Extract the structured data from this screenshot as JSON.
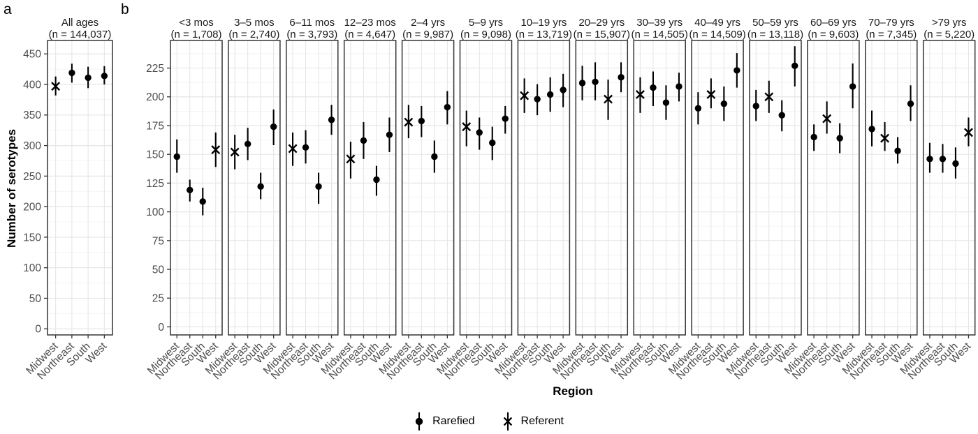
{
  "chart_data": {
    "type": "scatter",
    "panel_a_label": "a",
    "panel_b_label": "b",
    "ylabel": "Number of serotypes",
    "xlabel": "Region",
    "regions": [
      "Midwest",
      "Northeast",
      "South",
      "West"
    ],
    "legend": [
      {
        "label": "Rarefied",
        "marker": "circle"
      },
      {
        "label": "Referent",
        "marker": "x"
      }
    ],
    "colors": {
      "point": "#000000",
      "axis_text": "#4d4d4d",
      "title_text": "#1a1a1a",
      "grid_major": "#e6e6e6",
      "grid_minor": "#f2f2f2",
      "panel_border": "#333333"
    },
    "panel_a": {
      "facet_title": "All ages",
      "facet_subtitle": "(n = 144,037)",
      "y_ticks": [
        0,
        50,
        100,
        150,
        200,
        250,
        300,
        350,
        400,
        450
      ],
      "ylim": [
        -10,
        472
      ],
      "points": [
        {
          "region": "Midwest",
          "marker": "x",
          "value": 397,
          "lo": 382,
          "hi": 413
        },
        {
          "region": "Northeast",
          "marker": "circle",
          "value": 419,
          "lo": 403,
          "hi": 434
        },
        {
          "region": "South",
          "marker": "circle",
          "value": 411,
          "lo": 394,
          "hi": 429
        },
        {
          "region": "West",
          "marker": "circle",
          "value": 414,
          "lo": 400,
          "hi": 430
        }
      ]
    },
    "panel_b": {
      "y_ticks": [
        0,
        25,
        50,
        75,
        100,
        125,
        150,
        175,
        200,
        225
      ],
      "ylim": [
        -7,
        249
      ],
      "facets": [
        {
          "title": "<3 mos",
          "subtitle": "(n = 1,708)",
          "points": [
            {
              "region": "Midwest",
              "marker": "circle",
              "value": 148,
              "lo": 134,
              "hi": 163
            },
            {
              "region": "Northeast",
              "marker": "circle",
              "value": 119,
              "lo": 109,
              "hi": 128
            },
            {
              "region": "South",
              "marker": "circle",
              "value": 109,
              "lo": 97,
              "hi": 121
            },
            {
              "region": "West",
              "marker": "x",
              "value": 154,
              "lo": 139,
              "hi": 169
            }
          ]
        },
        {
          "title": "3–5 mos",
          "subtitle": "(n = 2,740)",
          "points": [
            {
              "region": "Midwest",
              "marker": "x",
              "value": 152,
              "lo": 137,
              "hi": 167
            },
            {
              "region": "Northeast",
              "marker": "circle",
              "value": 159,
              "lo": 145,
              "hi": 173
            },
            {
              "region": "South",
              "marker": "circle",
              "value": 122,
              "lo": 111,
              "hi": 134
            },
            {
              "region": "West",
              "marker": "circle",
              "value": 174,
              "lo": 158,
              "hi": 189
            }
          ]
        },
        {
          "title": "6–11 mos",
          "subtitle": "(n = 3,793)",
          "points": [
            {
              "region": "Midwest",
              "marker": "x",
              "value": 155,
              "lo": 140,
              "hi": 169
            },
            {
              "region": "Northeast",
              "marker": "circle",
              "value": 156,
              "lo": 142,
              "hi": 171
            },
            {
              "region": "South",
              "marker": "circle",
              "value": 122,
              "lo": 107,
              "hi": 134
            },
            {
              "region": "West",
              "marker": "circle",
              "value": 180,
              "lo": 167,
              "hi": 193
            }
          ]
        },
        {
          "title": "12–23 mos",
          "subtitle": "(n = 4,647)",
          "points": [
            {
              "region": "Midwest",
              "marker": "x",
              "value": 146,
              "lo": 129,
              "hi": 161
            },
            {
              "region": "Northeast",
              "marker": "circle",
              "value": 162,
              "lo": 146,
              "hi": 178
            },
            {
              "region": "South",
              "marker": "circle",
              "value": 128,
              "lo": 114,
              "hi": 140
            },
            {
              "region": "West",
              "marker": "circle",
              "value": 167,
              "lo": 152,
              "hi": 182
            }
          ]
        },
        {
          "title": "2–4 yrs",
          "subtitle": "(n = 9,987)",
          "points": [
            {
              "region": "Midwest",
              "marker": "x",
              "value": 178,
              "lo": 164,
              "hi": 193
            },
            {
              "region": "Northeast",
              "marker": "circle",
              "value": 179,
              "lo": 165,
              "hi": 192
            },
            {
              "region": "South",
              "marker": "circle",
              "value": 148,
              "lo": 134,
              "hi": 162
            },
            {
              "region": "West",
              "marker": "circle",
              "value": 191,
              "lo": 176,
              "hi": 205
            }
          ]
        },
        {
          "title": "5–9 yrs",
          "subtitle": "(n = 9,098)",
          "points": [
            {
              "region": "Midwest",
              "marker": "x",
              "value": 174,
              "lo": 157,
              "hi": 188
            },
            {
              "region": "Northeast",
              "marker": "circle",
              "value": 169,
              "lo": 154,
              "hi": 182
            },
            {
              "region": "South",
              "marker": "circle",
              "value": 160,
              "lo": 145,
              "hi": 174
            },
            {
              "region": "West",
              "marker": "circle",
              "value": 181,
              "lo": 168,
              "hi": 192
            }
          ]
        },
        {
          "title": "10–19 yrs",
          "subtitle": "(n = 13,719)",
          "points": [
            {
              "region": "Midwest",
              "marker": "x",
              "value": 201,
              "lo": 186,
              "hi": 216
            },
            {
              "region": "Northeast",
              "marker": "circle",
              "value": 198,
              "lo": 184,
              "hi": 211
            },
            {
              "region": "South",
              "marker": "circle",
              "value": 202,
              "lo": 187,
              "hi": 217
            },
            {
              "region": "West",
              "marker": "circle",
              "value": 206,
              "lo": 191,
              "hi": 220
            }
          ]
        },
        {
          "title": "20–29 yrs",
          "subtitle": "(n = 15,907)",
          "points": [
            {
              "region": "Midwest",
              "marker": "circle",
              "value": 212,
              "lo": 197,
              "hi": 227
            },
            {
              "region": "Northeast",
              "marker": "circle",
              "value": 213,
              "lo": 197,
              "hi": 230
            },
            {
              "region": "South",
              "marker": "x",
              "value": 198,
              "lo": 180,
              "hi": 215
            },
            {
              "region": "West",
              "marker": "circle",
              "value": 217,
              "lo": 204,
              "hi": 230
            }
          ]
        },
        {
          "title": "30–39 yrs",
          "subtitle": "(n = 14,505)",
          "points": [
            {
              "region": "Midwest",
              "marker": "x",
              "value": 202,
              "lo": 186,
              "hi": 217
            },
            {
              "region": "Northeast",
              "marker": "circle",
              "value": 208,
              "lo": 192,
              "hi": 222
            },
            {
              "region": "South",
              "marker": "circle",
              "value": 195,
              "lo": 180,
              "hi": 210
            },
            {
              "region": "West",
              "marker": "circle",
              "value": 209,
              "lo": 196,
              "hi": 221
            }
          ]
        },
        {
          "title": "40–49 yrs",
          "subtitle": "(n = 14,509)",
          "points": [
            {
              "region": "Midwest",
              "marker": "circle",
              "value": 190,
              "lo": 176,
              "hi": 204
            },
            {
              "region": "Northeast",
              "marker": "x",
              "value": 202,
              "lo": 190,
              "hi": 216
            },
            {
              "region": "South",
              "marker": "circle",
              "value": 194,
              "lo": 179,
              "hi": 209
            },
            {
              "region": "West",
              "marker": "circle",
              "value": 223,
              "lo": 208,
              "hi": 238
            }
          ]
        },
        {
          "title": "50–59 yrs",
          "subtitle": "(n = 13,118)",
          "points": [
            {
              "region": "Midwest",
              "marker": "circle",
              "value": 192,
              "lo": 179,
              "hi": 206
            },
            {
              "region": "Northeast",
              "marker": "x",
              "value": 200,
              "lo": 186,
              "hi": 214
            },
            {
              "region": "South",
              "marker": "circle",
              "value": 184,
              "lo": 170,
              "hi": 197
            },
            {
              "region": "West",
              "marker": "circle",
              "value": 227,
              "lo": 209,
              "hi": 244
            }
          ]
        },
        {
          "title": "60–69 yrs",
          "subtitle": "(n = 9,603)",
          "points": [
            {
              "region": "Midwest",
              "marker": "circle",
              "value": 165,
              "lo": 153,
              "hi": 176
            },
            {
              "region": "Northeast",
              "marker": "x",
              "value": 181,
              "lo": 168,
              "hi": 196
            },
            {
              "region": "South",
              "marker": "circle",
              "value": 164,
              "lo": 151,
              "hi": 177
            },
            {
              "region": "West",
              "marker": "circle",
              "value": 209,
              "lo": 190,
              "hi": 229
            }
          ]
        },
        {
          "title": "70–79 yrs",
          "subtitle": "(n = 7,345)",
          "points": [
            {
              "region": "Midwest",
              "marker": "circle",
              "value": 172,
              "lo": 157,
              "hi": 188
            },
            {
              "region": "Northeast",
              "marker": "x",
              "value": 164,
              "lo": 153,
              "hi": 178
            },
            {
              "region": "South",
              "marker": "circle",
              "value": 153,
              "lo": 142,
              "hi": 165
            },
            {
              "region": "West",
              "marker": "circle",
              "value": 194,
              "lo": 179,
              "hi": 210
            }
          ]
        },
        {
          "title": ">79 yrs",
          "subtitle": "(n = 5,220)",
          "points": [
            {
              "region": "Midwest",
              "marker": "circle",
              "value": 146,
              "lo": 134,
              "hi": 160
            },
            {
              "region": "Northeast",
              "marker": "circle",
              "value": 146,
              "lo": 134,
              "hi": 159
            },
            {
              "region": "South",
              "marker": "circle",
              "value": 142,
              "lo": 129,
              "hi": 156
            },
            {
              "region": "West",
              "marker": "x",
              "value": 169,
              "lo": 157,
              "hi": 182
            }
          ]
        }
      ]
    }
  }
}
